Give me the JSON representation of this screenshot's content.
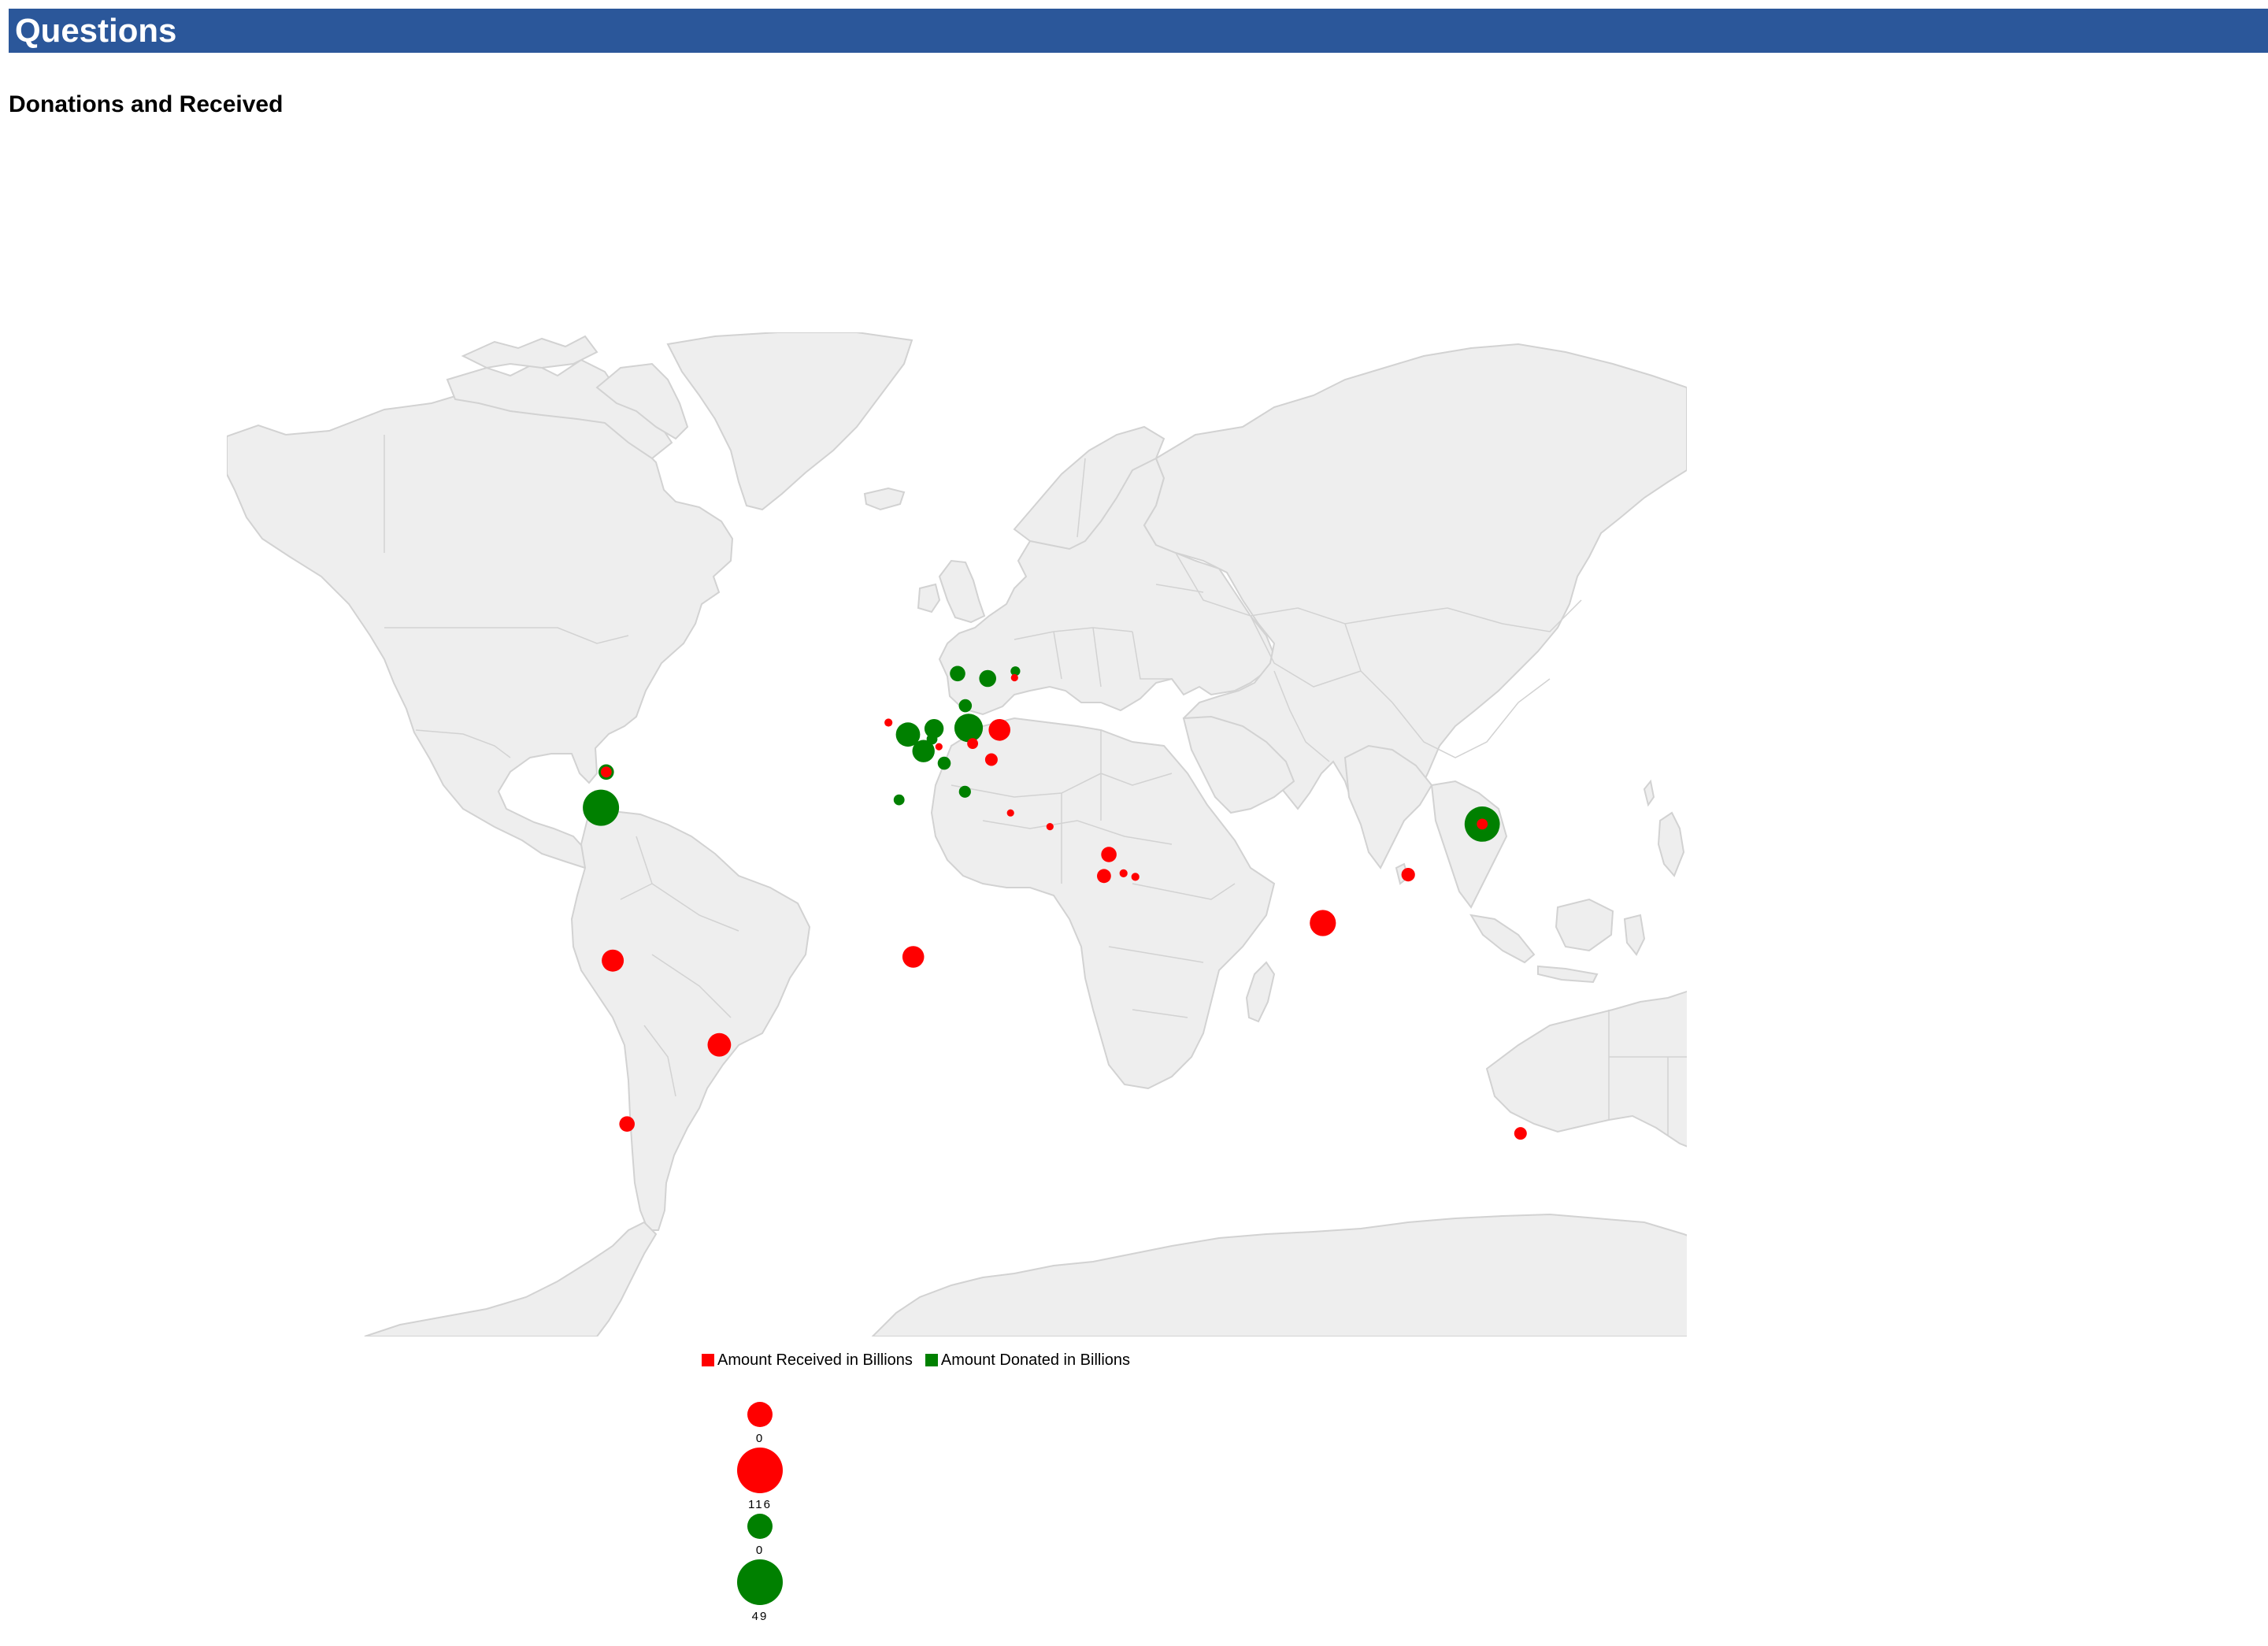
{
  "header": {
    "title": "Questions"
  },
  "section": {
    "subtitle": "Donations and Received"
  },
  "colors": {
    "header_bg": "#2b579a",
    "received": "#ff0000",
    "donated": "#008000",
    "land": "#eeeeee",
    "land_stroke": "#d2d2d2"
  },
  "legend": {
    "received_label": "Amount Received in Billions",
    "donated_label": "Amount Donated in Billions"
  },
  "size_legend": {
    "received": {
      "min": "0",
      "max": "116"
    },
    "donated": {
      "min": "0",
      "max": "49"
    }
  },
  "chart_data": {
    "type": "bubble-map",
    "projection": "mercator",
    "series": [
      {
        "name": "Amount Received in Billions",
        "color": "#ff0000"
      },
      {
        "name": "Amount Donated in Billions",
        "color": "#008000"
      }
    ],
    "points": [
      {
        "id": "usa",
        "series": "donated",
        "lat": 38.9,
        "lon": -77.0,
        "rel": 1.0
      },
      {
        "id": "canada",
        "series": "donated",
        "lat": 45.4,
        "lon": -75.7,
        "rel": 0.18
      },
      {
        "id": "japan",
        "series": "donated",
        "lat": 35.7,
        "lon": 139.7,
        "rel": 0.95
      },
      {
        "id": "germany",
        "series": "donated",
        "lat": 52.5,
        "lon": 13.4,
        "rel": 0.62
      },
      {
        "id": "uk",
        "series": "donated",
        "lat": 51.5,
        "lon": -1.5,
        "rel": 0.45
      },
      {
        "id": "france",
        "series": "donated",
        "lat": 48.9,
        "lon": 2.3,
        "rel": 0.38
      },
      {
        "id": "netherlands",
        "series": "donated",
        "lat": 52.4,
        "lon": 4.9,
        "rel": 0.28
      },
      {
        "id": "norway",
        "series": "donated",
        "lat": 59.9,
        "lon": 10.7,
        "rel": 0.18
      },
      {
        "id": "sweden",
        "series": "donated",
        "lat": 59.3,
        "lon": 18.1,
        "rel": 0.22
      },
      {
        "id": "denmark",
        "series": "donated",
        "lat": 55.7,
        "lon": 12.6,
        "rel": 0.13
      },
      {
        "id": "switzerland",
        "series": "donated",
        "lat": 46.9,
        "lon": 7.4,
        "rel": 0.13
      },
      {
        "id": "spain",
        "series": "donated",
        "lat": 40.4,
        "lon": -3.7,
        "rel": 0.09
      },
      {
        "id": "italy",
        "series": "donated",
        "lat": 41.9,
        "lon": 12.5,
        "rel": 0.11
      },
      {
        "id": "belgium",
        "series": "donated",
        "lat": 50.8,
        "lon": 4.4,
        "rel": 0.09
      },
      {
        "id": "finland",
        "series": "donated",
        "lat": 60.2,
        "lon": 24.9,
        "rel": 0.07
      },
      {
        "id": "poland",
        "series": "received",
        "lat": 52.2,
        "lon": 21.0,
        "rel": 0.36
      },
      {
        "id": "thailand",
        "series": "received",
        "lat": 13.8,
        "lon": 100.5,
        "rel": 0.52
      },
      {
        "id": "brazil",
        "series": "received",
        "lat": -15.8,
        "lon": -47.9,
        "rel": 0.42
      },
      {
        "id": "colombia",
        "series": "received",
        "lat": 4.7,
        "lon": -74.1,
        "rel": 0.37
      },
      {
        "id": "ghana",
        "series": "received",
        "lat": 5.6,
        "lon": -0.2,
        "rel": 0.36
      },
      {
        "id": "chile",
        "series": "received",
        "lat": -33.4,
        "lon": -70.6,
        "rel": 0.18
      },
      {
        "id": "kuwait",
        "series": "received",
        "lat": 29.4,
        "lon": 47.9,
        "rel": 0.18
      },
      {
        "id": "saudi",
        "series": "received",
        "lat": 24.7,
        "lon": 46.7,
        "rel": 0.15
      },
      {
        "id": "taiwan",
        "series": "received",
        "lat": 25.0,
        "lon": 121.5,
        "rel": 0.14
      },
      {
        "id": "australia",
        "series": "received",
        "lat": -35.3,
        "lon": 149.1,
        "rel": 0.12
      },
      {
        "id": "hungary",
        "series": "received",
        "lat": 47.5,
        "lon": 19.0,
        "rel": 0.12
      },
      {
        "id": "czech",
        "series": "received",
        "lat": 50.1,
        "lon": 14.4,
        "rel": 0.09
      },
      {
        "id": "canada-r",
        "series": "received",
        "lat": 45.4,
        "lon": -75.7,
        "rel": 0.09
      },
      {
        "id": "japan-r",
        "series": "received",
        "lat": 35.7,
        "lon": 139.7,
        "rel": 0.09
      },
      {
        "id": "uae",
        "series": "received",
        "lat": 24.5,
        "lon": 54.4,
        "rel": 0.05
      },
      {
        "id": "qatar",
        "series": "received",
        "lat": 25.3,
        "lon": 51.5,
        "rel": 0.05
      },
      {
        "id": "ireland",
        "series": "received",
        "lat": 53.3,
        "lon": -6.3,
        "rel": 0.05
      },
      {
        "id": "estonia",
        "series": "received",
        "lat": 59.4,
        "lon": 24.7,
        "rel": 0.04
      },
      {
        "id": "greece",
        "series": "received",
        "lat": 37.9,
        "lon": 23.7,
        "rel": 0.04
      },
      {
        "id": "cyprus",
        "series": "received",
        "lat": 35.2,
        "lon": 33.4,
        "rel": 0.04
      },
      {
        "id": "lux",
        "series": "received",
        "lat": 49.6,
        "lon": 6.1,
        "rel": 0.04
      }
    ]
  }
}
